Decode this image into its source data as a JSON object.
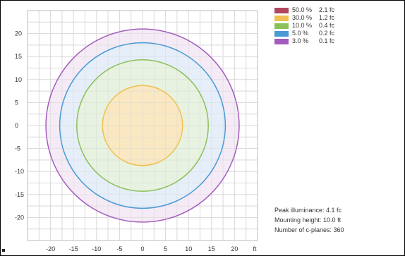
{
  "chart_data": {
    "type": "contour",
    "title": "",
    "x_unit": "ft",
    "xlim": [
      -25,
      25
    ],
    "ylim": [
      -25,
      25
    ],
    "x_ticks": [
      -20,
      -15,
      -10,
      -5,
      0,
      5,
      10,
      15,
      20
    ],
    "y_ticks": [
      20,
      15,
      10,
      5,
      0,
      -5,
      -10,
      -15,
      -20
    ],
    "grid": true,
    "legend_position": "top-right",
    "series": [
      {
        "percent": "50.0 %",
        "illuminance": "2.1 fc",
        "radius": 0,
        "color": "#b0455c",
        "fill": "#e8c5cc"
      },
      {
        "percent": "30.0 %",
        "illuminance": "1.2 fc",
        "radius": 8.7,
        "color": "#f0c050",
        "fill": "#fbe6bb"
      },
      {
        "percent": "10.0 %",
        "illuminance": "0.4 fc",
        "radius": 14.3,
        "color": "#8cc05a",
        "fill": "#e6f2dc"
      },
      {
        "percent": "5.0 %",
        "illuminance": "0.2 fc",
        "radius": 18.0,
        "color": "#4a9ad6",
        "fill": "#e3eef9"
      },
      {
        "percent": "3.0 %",
        "illuminance": "0.1 fc",
        "radius": 21.0,
        "color": "#a35cbd",
        "fill": "#f3e8f5"
      }
    ]
  },
  "info": {
    "peak_label": "Peak illuminance: 4.1 fc",
    "mounting_label": "Mounting height: 10.0 ft",
    "cplanes_label": "Number of c-planes: 360"
  }
}
